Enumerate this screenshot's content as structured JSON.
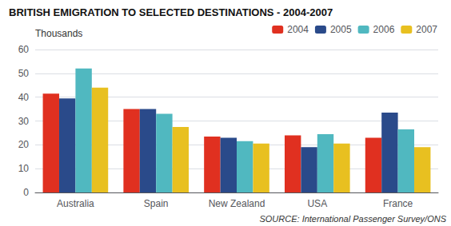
{
  "chart_data": {
    "type": "bar",
    "title": "BRITISH EMIGRATION TO SELECTED DESTINATIONS - 2004-2007",
    "ylabel": "Thousands",
    "annotations": [
      "SOURCE: International Passenger Survey/ONS"
    ],
    "categories": [
      "Australia",
      "Spain",
      "New Zealand",
      "USA",
      "France"
    ],
    "series": [
      {
        "name": "2004",
        "color": "#e03020",
        "values": [
          41.5,
          35.0,
          23.5,
          24.0,
          23.0
        ]
      },
      {
        "name": "2005",
        "color": "#2a4a8a",
        "values": [
          39.5,
          35.0,
          23.0,
          19.0,
          33.5
        ]
      },
      {
        "name": "2006",
        "color": "#50b8c0",
        "values": [
          52.0,
          33.0,
          21.5,
          24.5,
          26.5
        ]
      },
      {
        "name": "2007",
        "color": "#e8c020",
        "values": [
          44.0,
          27.5,
          20.5,
          20.5,
          19.0
        ]
      }
    ],
    "ylim": [
      0,
      60
    ],
    "yticks": [
      0,
      10,
      20,
      30,
      40,
      50,
      60
    ],
    "grid": true,
    "legend": "upper right"
  }
}
